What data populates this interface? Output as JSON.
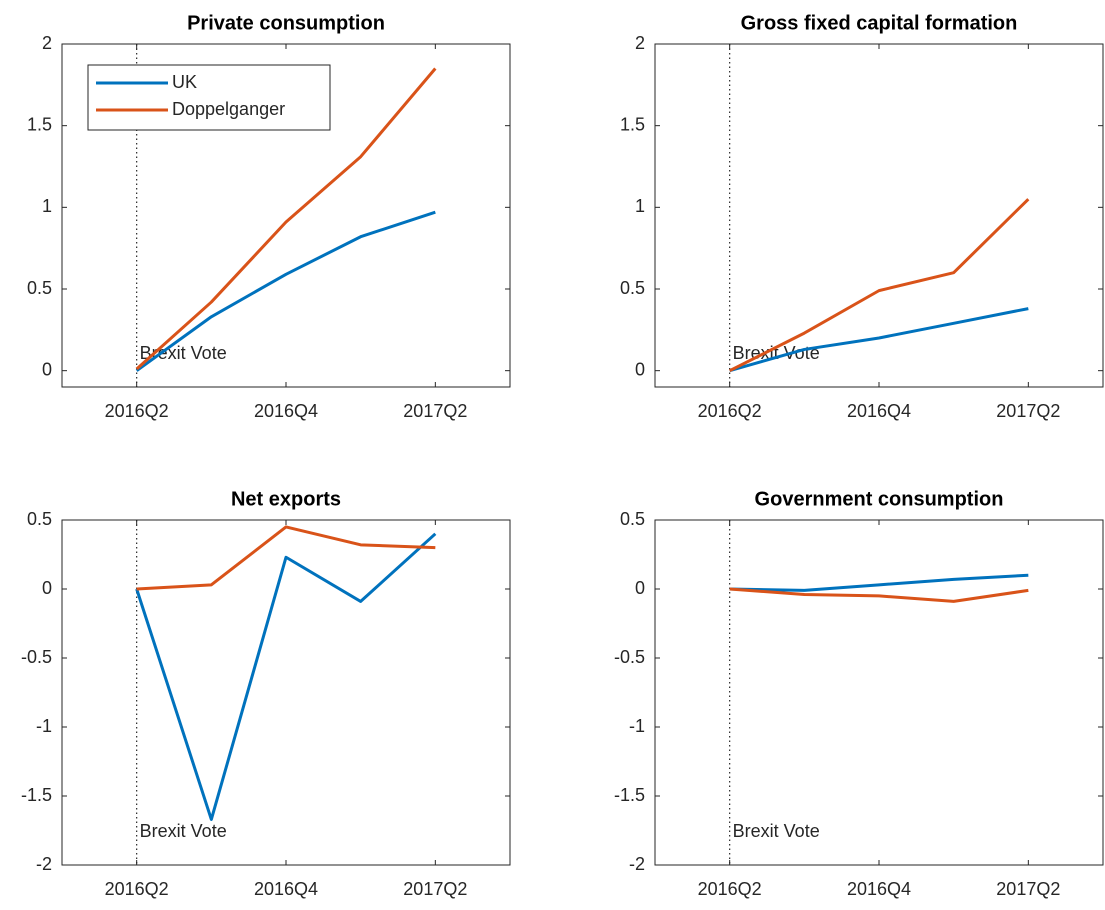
{
  "chart_data": [
    {
      "type": "line",
      "title": "Private consumption",
      "categories": [
        "2016Q2",
        null,
        "2016Q4",
        null,
        "2017Q2"
      ],
      "series": [
        {
          "name": "UK",
          "color": "#0072bd",
          "values": [
            0,
            0.33,
            0.59,
            0.82,
            0.97
          ]
        },
        {
          "name": "Doppelganger",
          "color": "#d95319",
          "values": [
            0.01,
            0.42,
            0.91,
            1.31,
            1.85
          ]
        }
      ],
      "ylim": [
        -0.1,
        2
      ],
      "yticks": [
        0,
        0.5,
        1,
        1.5,
        2
      ],
      "legend": "upper left",
      "annotation": {
        "text": "Brexit Vote",
        "x": "2016Q2"
      }
    },
    {
      "type": "line",
      "title": "Gross fixed capital formation",
      "categories": [
        "2016Q2",
        null,
        "2016Q4",
        null,
        "2017Q2"
      ],
      "series": [
        {
          "color": "#0072bd",
          "values": [
            0,
            0.13,
            0.2,
            0.29,
            0.38
          ]
        },
        {
          "color": "#d95319",
          "values": [
            0,
            0.23,
            0.49,
            0.6,
            1.05
          ]
        }
      ],
      "ylim": [
        -0.1,
        2
      ],
      "yticks": [
        0,
        0.5,
        1,
        1.5,
        2
      ],
      "annotation": {
        "text": "Brexit Vote",
        "x": "2016Q2"
      }
    },
    {
      "type": "line",
      "title": "Net exports",
      "categories": [
        "2016Q2",
        null,
        "2016Q4",
        null,
        "2017Q2"
      ],
      "series": [
        {
          "color": "#0072bd",
          "values": [
            0,
            -1.67,
            0.23,
            -0.09,
            0.4
          ]
        },
        {
          "color": "#d95319",
          "values": [
            0,
            0.03,
            0.45,
            0.32,
            0.3
          ]
        }
      ],
      "ylim": [
        -2,
        0.5
      ],
      "yticks": [
        -2,
        -1.5,
        -1,
        -0.5,
        0,
        0.5
      ],
      "annotation": {
        "text": "Brexit Vote",
        "x": "2016Q2"
      }
    },
    {
      "type": "line",
      "title": "Government consumption",
      "categories": [
        "2016Q2",
        null,
        "2016Q4",
        null,
        "2017Q2"
      ],
      "series": [
        {
          "color": "#0072bd",
          "values": [
            0,
            -0.01,
            0.03,
            0.07,
            0.1
          ]
        },
        {
          "color": "#d95319",
          "values": [
            0,
            -0.04,
            -0.05,
            -0.09,
            -0.01
          ]
        }
      ],
      "ylim": [
        -2,
        0.5
      ],
      "yticks": [
        -2,
        -1.5,
        -1,
        -0.5,
        0,
        0.5
      ],
      "annotation": {
        "text": "Brexit Vote",
        "x": "2016Q2"
      }
    }
  ]
}
